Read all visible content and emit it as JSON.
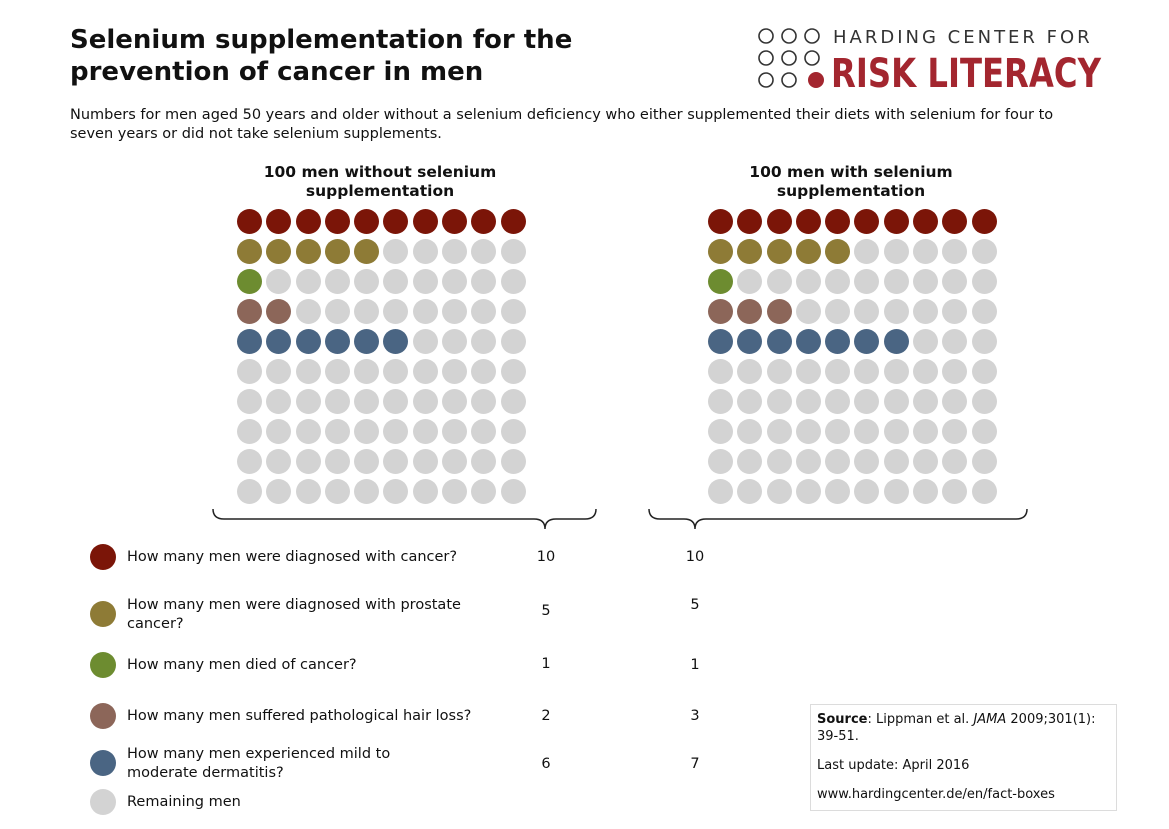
{
  "title": "Selenium supplementation for the prevention of cancer in men",
  "subtitle": "Numbers for men aged 50 years and older without a selenium deficiency who either supplemented their diets with selenium for four to seven years or did not take selenium supplements.",
  "logo": {
    "line1": "HARDING CENTER FOR",
    "line2": "RISK LITERACY"
  },
  "groups": [
    {
      "title": "100 men without selenium supplementation",
      "counts": [
        10,
        5,
        1,
        2,
        6
      ]
    },
    {
      "title": "100 men with selenium supplementation",
      "counts": [
        10,
        5,
        1,
        3,
        7
      ]
    }
  ],
  "remaining_color": "#d3d3d3",
  "legend": [
    {
      "question": "How many men were diagnosed with cancer?",
      "color": "#7b1508",
      "without": "10",
      "with": "10"
    },
    {
      "question": "How many men were diagnosed with prostate cancer?",
      "color": "#8e7b36",
      "without": "5",
      "with": "5"
    },
    {
      "question": "How many men died of cancer?",
      "color": "#6d8c30",
      "without": "1",
      "with": "1"
    },
    {
      "question": "How many men suffered pathological hair loss?",
      "color": "#8c6659",
      "without": "2",
      "with": "3"
    },
    {
      "question": "How many men experienced mild to moderate dermatitis?",
      "color": "#4a6583",
      "without": "6",
      "with": "7"
    },
    {
      "question": "Remaining men",
      "color": "#d3d3d3",
      "without": "",
      "with": ""
    }
  ],
  "source": {
    "label": "Source",
    "authors": ": Lippman et al. ",
    "journal": "JAMA",
    "citation": " 2009;301(1): 39-51.",
    "update": "Last update: April 2016",
    "url": "www.hardingcenter.de/en/fact-boxes"
  }
}
